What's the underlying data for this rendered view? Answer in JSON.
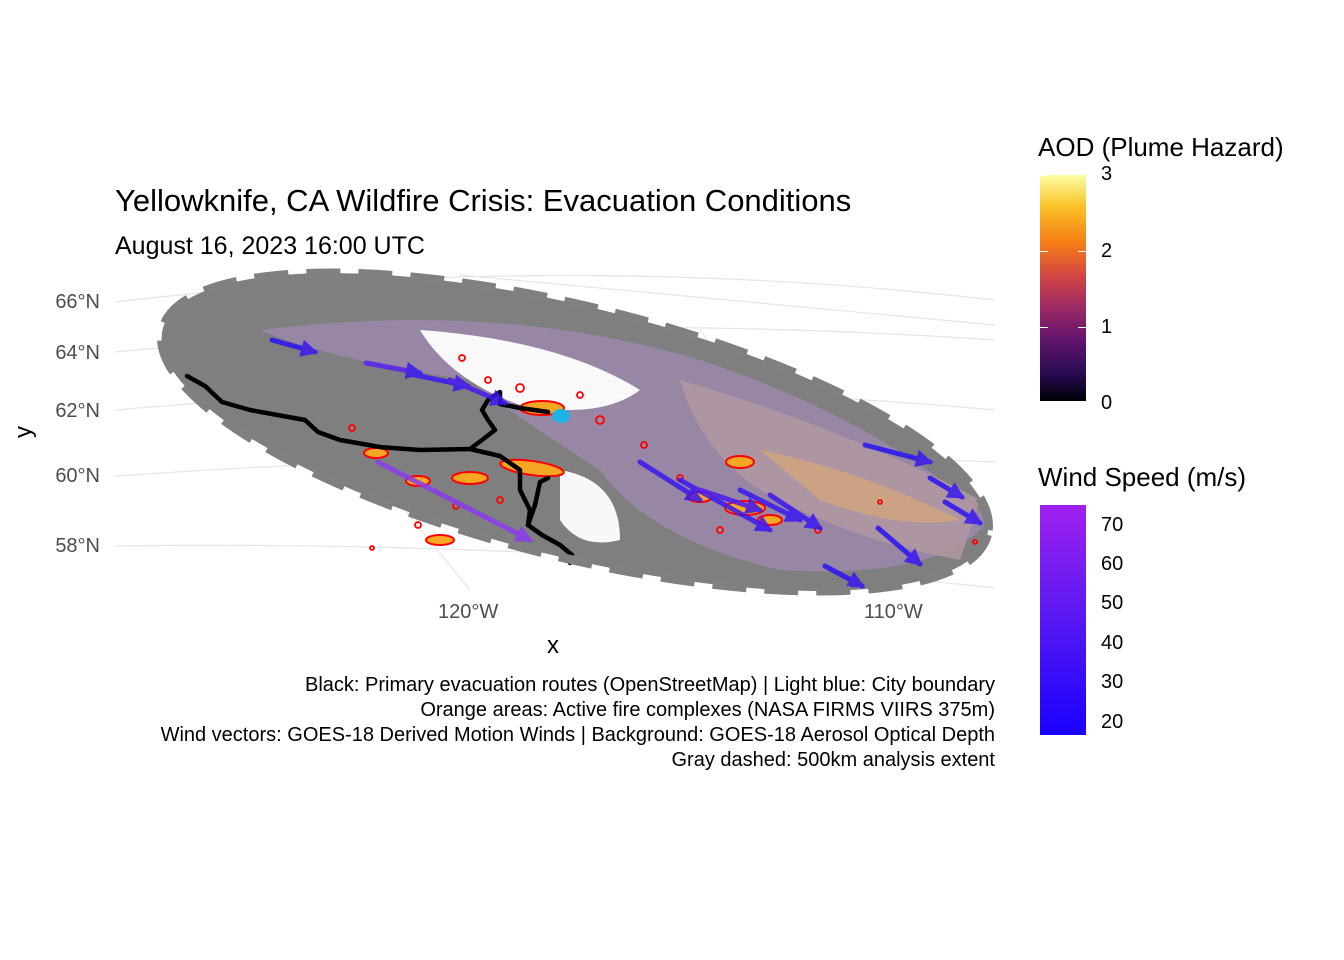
{
  "title": "Yellowknife, CA Wildfire Crisis: Evacuation Conditions",
  "subtitle": "August 16, 2023 16:00 UTC",
  "axes": {
    "x_title": "x",
    "y_title": "y",
    "lat_labels": [
      "66°N",
      "64°N",
      "62°N",
      "60°N",
      "58°N"
    ],
    "lon_labels": [
      "120°W",
      "110°W"
    ]
  },
  "caption": {
    "line1": "Black: Primary evacuation routes (OpenStreetMap) | Light blue: City boundary",
    "line2": "Orange areas: Active fire complexes (NASA FIRMS VIIRS 375m)",
    "line3": "Wind vectors: GOES-18 Derived Motion Winds | Background: GOES-18 Aerosol Optical Depth",
    "line4": "Gray dashed: 500km analysis extent"
  },
  "legends": {
    "aod": {
      "title": "AOD (Plume Hazard)",
      "ticks": [
        "3",
        "2",
        "1",
        "0"
      ],
      "range": [
        0,
        3
      ],
      "palette": "inferno"
    },
    "wind": {
      "title": "Wind Speed (m/s)",
      "ticks": [
        "70",
        "60",
        "50",
        "40",
        "30",
        "20"
      ],
      "range": [
        17,
        75
      ],
      "palette": "blue-purple"
    }
  },
  "map_layers": {
    "evacuation_route_color": "#000000",
    "city_boundary_color": "#1fb3e6",
    "fire_fill_color": "#f5a623",
    "fire_outline_color": "#ff0000",
    "analysis_extent_color": "#808080",
    "analysis_extent": "500km",
    "city": "Yellowknife"
  }
}
